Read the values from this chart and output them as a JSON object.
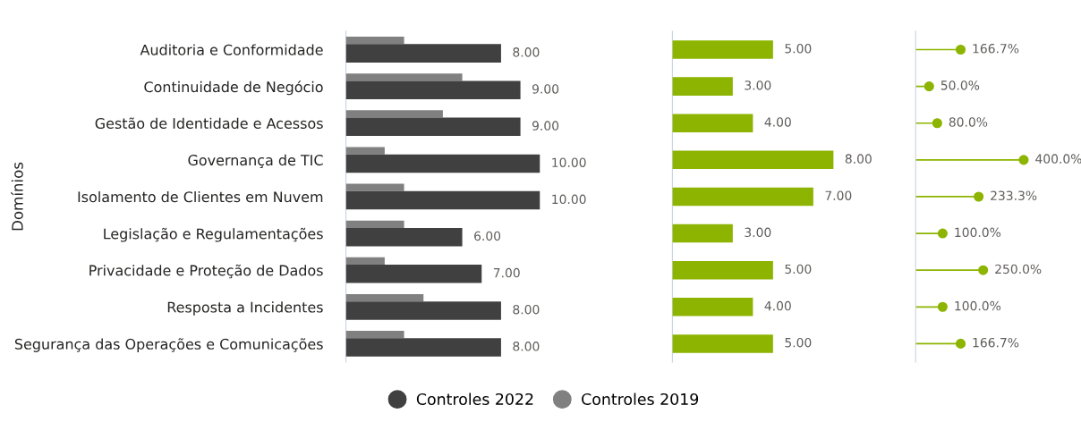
{
  "chart_data": [
    {
      "type": "bar",
      "orientation": "horizontal",
      "ylabel": "Domínios",
      "legend": "bottom",
      "grid": false,
      "tick_labels": "y",
      "categories": [
        "Auditoria e Conformidade",
        "Continuidade de Negócio",
        "Gestão de Identidade e Acessos",
        "Governança de TIC",
        "Isolamento de Clientes em Nuvem",
        "Legislação e Regulamentações",
        "Privacidade e Proteção de Dados",
        "Resposta a Incidentes",
        "Segurança das Operações e Comunicações"
      ],
      "series": [
        {
          "name": "Controles 2022",
          "color": "#404040",
          "values": [
            8,
            9,
            9,
            10,
            10,
            6,
            7,
            8,
            8
          ],
          "value_labels": [
            "8.00",
            "9.00",
            "9.00",
            "10.00",
            "10.00",
            "6.00",
            "7.00",
            "8.00",
            "8.00"
          ]
        },
        {
          "name": "Controles 2019",
          "color": "#808080",
          "values": [
            3,
            6,
            5,
            2,
            3,
            3,
            2,
            4,
            3
          ]
        }
      ]
    },
    {
      "type": "bar",
      "orientation": "horizontal",
      "tick_labels": false,
      "grid": false,
      "categories": [
        null,
        null,
        null,
        null,
        null,
        null,
        null,
        null,
        null
      ],
      "color": "#8cb400",
      "values": [
        5,
        3,
        4,
        8,
        7,
        3,
        5,
        4,
        5
      ],
      "value_labels": [
        "5.00",
        "3.00",
        "4.00",
        "8.00",
        "7.00",
        "3.00",
        "5.00",
        "4.00",
        "5.00"
      ]
    },
    {
      "type": "lollipop",
      "orientation": "horizontal",
      "tick_labels": false,
      "grid": false,
      "marker": "circle",
      "categories": [
        null,
        null,
        null,
        null,
        null,
        null,
        null,
        null,
        null
      ],
      "color": "#8cb400",
      "values": [
        166.7,
        50.0,
        80.0,
        400.0,
        233.3,
        100.0,
        250.0,
        100.0,
        166.7
      ],
      "value_labels": [
        "166.7%",
        "50.0%",
        "80.0%",
        "400.0%",
        "233.3%",
        "100.0%",
        "250.0%",
        "100.0%",
        "166.7%"
      ]
    }
  ]
}
